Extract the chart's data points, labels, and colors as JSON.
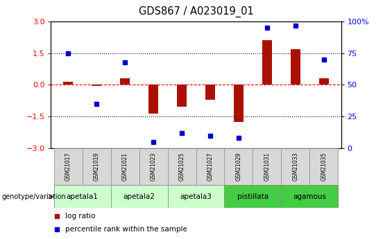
{
  "title": "GDS867 / A023019_01",
  "samples": [
    "GSM21017",
    "GSM21019",
    "GSM21021",
    "GSM21023",
    "GSM21025",
    "GSM21027",
    "GSM21029",
    "GSM21031",
    "GSM21033",
    "GSM21035"
  ],
  "log_ratio": [
    0.15,
    -0.05,
    0.3,
    -1.35,
    -1.05,
    -0.7,
    -1.75,
    2.1,
    1.7,
    0.3
  ],
  "percentile_rank": [
    75,
    35,
    68,
    5,
    12,
    10,
    8,
    95,
    97,
    70
  ],
  "groups": [
    {
      "name": "apetala1",
      "indices": [
        0,
        1
      ],
      "color": "#ccffcc"
    },
    {
      "name": "apetala2",
      "indices": [
        2,
        3
      ],
      "color": "#ccffcc"
    },
    {
      "name": "apetala3",
      "indices": [
        4,
        5
      ],
      "color": "#ccffcc"
    },
    {
      "name": "pistillata",
      "indices": [
        6,
        7
      ],
      "color": "#44dd44"
    },
    {
      "name": "agamous",
      "indices": [
        8,
        9
      ],
      "color": "#44dd44"
    }
  ],
  "bar_color": "#aa1100",
  "dot_color": "#0000cc",
  "left_ylim": [
    -3,
    3
  ],
  "right_ylim": [
    0,
    100
  ],
  "left_yticks": [
    -3,
    -1.5,
    0,
    1.5,
    3
  ],
  "right_yticks": [
    0,
    25,
    50,
    75,
    100
  ],
  "hline_values": [
    -1.5,
    0,
    1.5
  ],
  "hline_styles": [
    "dotted",
    "dashed",
    "dotted"
  ],
  "hline_colors": [
    "black",
    "red",
    "black"
  ],
  "legend_log_ratio": "log ratio",
  "legend_percentile": "percentile rank within the sample",
  "genotype_label": "genotype/variation"
}
